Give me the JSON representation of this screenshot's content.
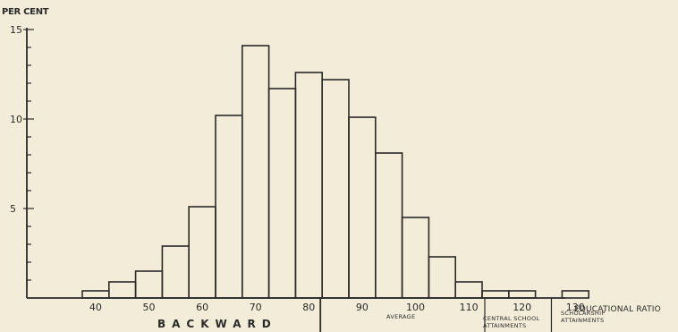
{
  "chart_data": {
    "type": "bar",
    "ylabel": "PER CENT",
    "xlabel": "EDUCATIONAL RATIO",
    "ylim": [
      0,
      15
    ],
    "xlim": [
      20,
      155
    ],
    "bin_width": 5,
    "y_ticks": [
      5,
      10,
      15
    ],
    "x_ticks": [
      40,
      50,
      60,
      70,
      80,
      90,
      100,
      110,
      120,
      130
    ],
    "x_tick_labels": [
      "40",
      "50",
      "60",
      "70",
      "80",
      "90",
      "100",
      "110",
      "120",
      "130"
    ],
    "bins": [
      {
        "start": 37.5,
        "value": 0.4
      },
      {
        "start": 42.5,
        "value": 0.9
      },
      {
        "start": 47.5,
        "value": 1.5
      },
      {
        "start": 52.5,
        "value": 2.9
      },
      {
        "start": 57.5,
        "value": 5.1
      },
      {
        "start": 62.5,
        "value": 10.2
      },
      {
        "start": 67.5,
        "value": 14.1
      },
      {
        "start": 72.5,
        "value": 11.7
      },
      {
        "start": 77.5,
        "value": 12.6
      },
      {
        "start": 82.5,
        "value": 12.2
      },
      {
        "start": 87.5,
        "value": 10.1
      },
      {
        "start": 92.5,
        "value": 8.1
      },
      {
        "start": 97.5,
        "value": 4.5
      },
      {
        "start": 102.5,
        "value": 2.3
      },
      {
        "start": 107.5,
        "value": 0.9
      },
      {
        "start": 112.5,
        "value": 0.4
      },
      {
        "start": 117.5,
        "value": 0.4
      },
      {
        "start": 122.5,
        "value": 0.0
      },
      {
        "start": 127.5,
        "value": 0.4
      }
    ],
    "dividers": [
      82.5,
      112.5,
      125.5
    ],
    "annotations": {
      "backward": "BACKWARD",
      "average": "AVERAGE",
      "central": [
        "CENTRAL SCHOOL",
        "ATTAINMENTS"
      ],
      "scholarship": [
        "SCHOLARSHIP",
        "ATTAINMENTS"
      ]
    },
    "grid": false
  }
}
